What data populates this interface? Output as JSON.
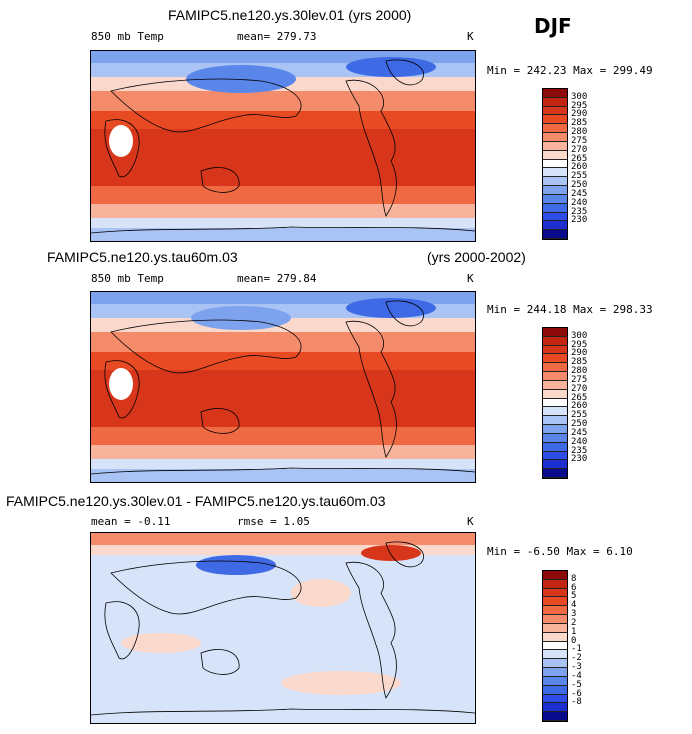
{
  "season": "DJF",
  "colors": {
    "temp": [
      "#0a0a8c",
      "#1e2fd0",
      "#2e4ce6",
      "#3f6ae6",
      "#5a86ea",
      "#7ea3ee",
      "#a9c3f4",
      "#d6e3f8",
      "#ffffff",
      "#fbd8cc",
      "#f7b39c",
      "#f48c6c",
      "#ef6a43",
      "#e84b24",
      "#d8361a",
      "#c22612",
      "#8c0a0a"
    ],
    "diff": [
      "#0a0a8c",
      "#1e2fd0",
      "#2e4ce6",
      "#3f6ae6",
      "#5a86ea",
      "#7ea3ee",
      "#a9c3f4",
      "#d6e3f8",
      "#ffffff",
      "#fbd8cc",
      "#f7b39c",
      "#f48c6c",
      "#ef6a43",
      "#e84b24",
      "#d8361a",
      "#c22612",
      "#8c0a0a"
    ]
  },
  "chart_data": [
    {
      "type": "heatmap",
      "title": "FAMIPC5.ne120.ys.30lev.01 (yrs 2000)",
      "left_label": "850 mb Temp",
      "mean_text": "mean= 279.73",
      "units": "K",
      "minmax_text": "Min = 242.23 Max = 299.49",
      "min": 242.23,
      "max": 299.49,
      "mean": 279.73,
      "colorbar_levels": [
        "230",
        "235",
        "240",
        "245",
        "250",
        "255",
        "260",
        "265",
        "270",
        "275",
        "280",
        "285",
        "290",
        "295",
        "300"
      ]
    },
    {
      "type": "heatmap",
      "title": "FAMIPC5.ne120.ys.tau60m.03",
      "title_right": "(yrs 2000-2002)",
      "left_label": "850 mb Temp",
      "mean_text": "mean= 279.84",
      "units": "K",
      "minmax_text": "Min = 244.18 Max = 298.33",
      "min": 244.18,
      "max": 298.33,
      "mean": 279.84,
      "colorbar_levels": [
        "230",
        "235",
        "240",
        "245",
        "250",
        "255",
        "260",
        "265",
        "270",
        "275",
        "280",
        "285",
        "290",
        "295",
        "300"
      ]
    },
    {
      "type": "heatmap",
      "title": "FAMIPC5.ne120.ys.30lev.01 - FAMIPC5.ne120.ys.tau60m.03",
      "left_label": "mean =   -0.11",
      "mean_text": "rmse =    1.05",
      "units": "K",
      "minmax_text": "Min =  -6.50 Max =   6.10",
      "min": -6.5,
      "max": 6.1,
      "mean": -0.11,
      "rmse": 1.05,
      "colorbar_levels": [
        "-8",
        "-6",
        "-5",
        "-4",
        "-3",
        "-2",
        "-1",
        "0",
        "1",
        "2",
        "3",
        "4",
        "5",
        "6",
        "8"
      ]
    }
  ]
}
